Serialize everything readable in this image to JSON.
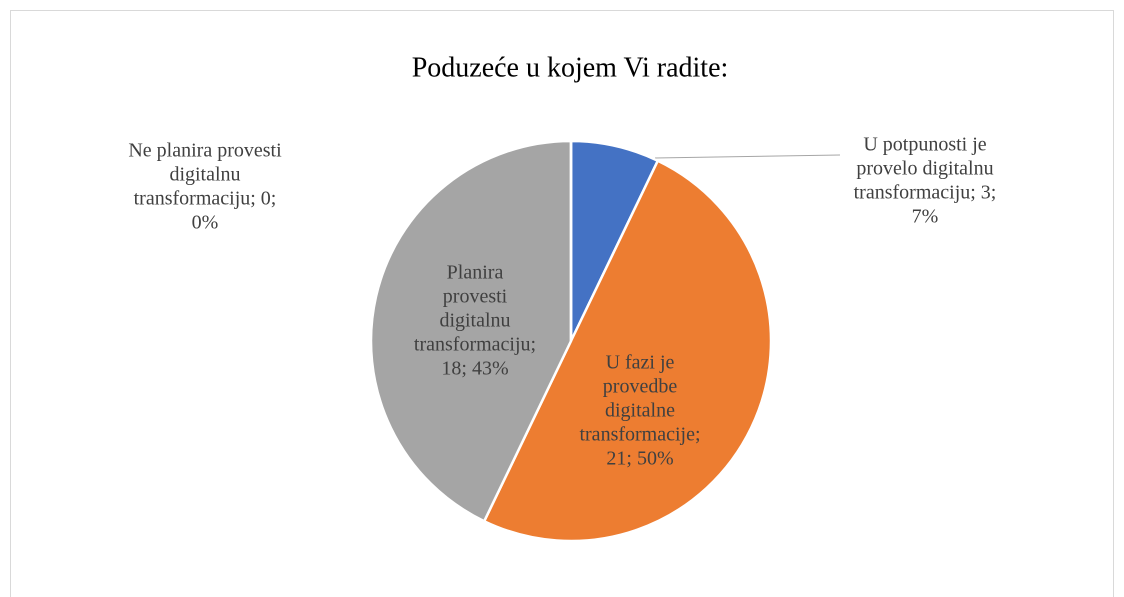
{
  "chart_data": {
    "type": "pie",
    "title": "Poduzeće u kojem Vi radite:",
    "categories": [
      "U potpunosti je provelo digitalnu transformaciju",
      "U fazi je provedbe digitalne transformacije",
      "Planira provesti digitalnu transformaciju",
      "Ne planira provesti digitalnu transformaciju"
    ],
    "values": [
      3,
      21,
      18,
      0
    ],
    "value_labels": [
      [
        "U potpunosti je",
        "provelo digitalnu",
        "transformaciju; 3;",
        "7%"
      ],
      [
        "U fazi je",
        "provedbe",
        "digitalne",
        "transformacije;",
        "21; 50%"
      ],
      [
        "Planira",
        "provesti",
        "digitalnu",
        "transformaciju;",
        "18; 43%"
      ],
      [
        "Ne planira provesti",
        "digitalnu",
        "transformaciju; 0;",
        "0%"
      ]
    ],
    "colors": [
      "#4472c4",
      "#ed7d31",
      "#a5a5a5",
      "#ffc000"
    ]
  }
}
